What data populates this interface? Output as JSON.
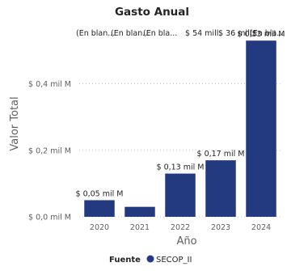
{
  "chart_data": {
    "type": "bar",
    "title": "Gasto Anual",
    "xlabel": "Año",
    "ylabel": "Valor Total",
    "categories": [
      "2020",
      "2021",
      "2022",
      "2023",
      "2024"
    ],
    "series": [
      {
        "name": "SECOP_II",
        "values": [
          0.05,
          0.03,
          0.13,
          0.17,
          0.53
        ]
      }
    ],
    "ylim": [
      0,
      0.55
    ],
    "yticks": [
      0,
      0.2,
      0.4
    ],
    "ytick_labels": [
      "$ 0,0 mil M",
      "$ 0,2 mil M",
      "$ 0,4 mil M"
    ],
    "data_labels": [
      "$ 0,05 mil M",
      "",
      "$ 0,13 mil M",
      "$ 0,17 mil M",
      "$ 0,53 mil M"
    ],
    "top_labels": [
      "(En blan...",
      "(En blan...",
      "(En bla...",
      "$ 54 mill.",
      "$ 36 mill.",
      "(En bla..."
    ],
    "grid": true,
    "legend_title": "Fuente",
    "legend_position": "bottom",
    "bar_color": "#243a80"
  }
}
